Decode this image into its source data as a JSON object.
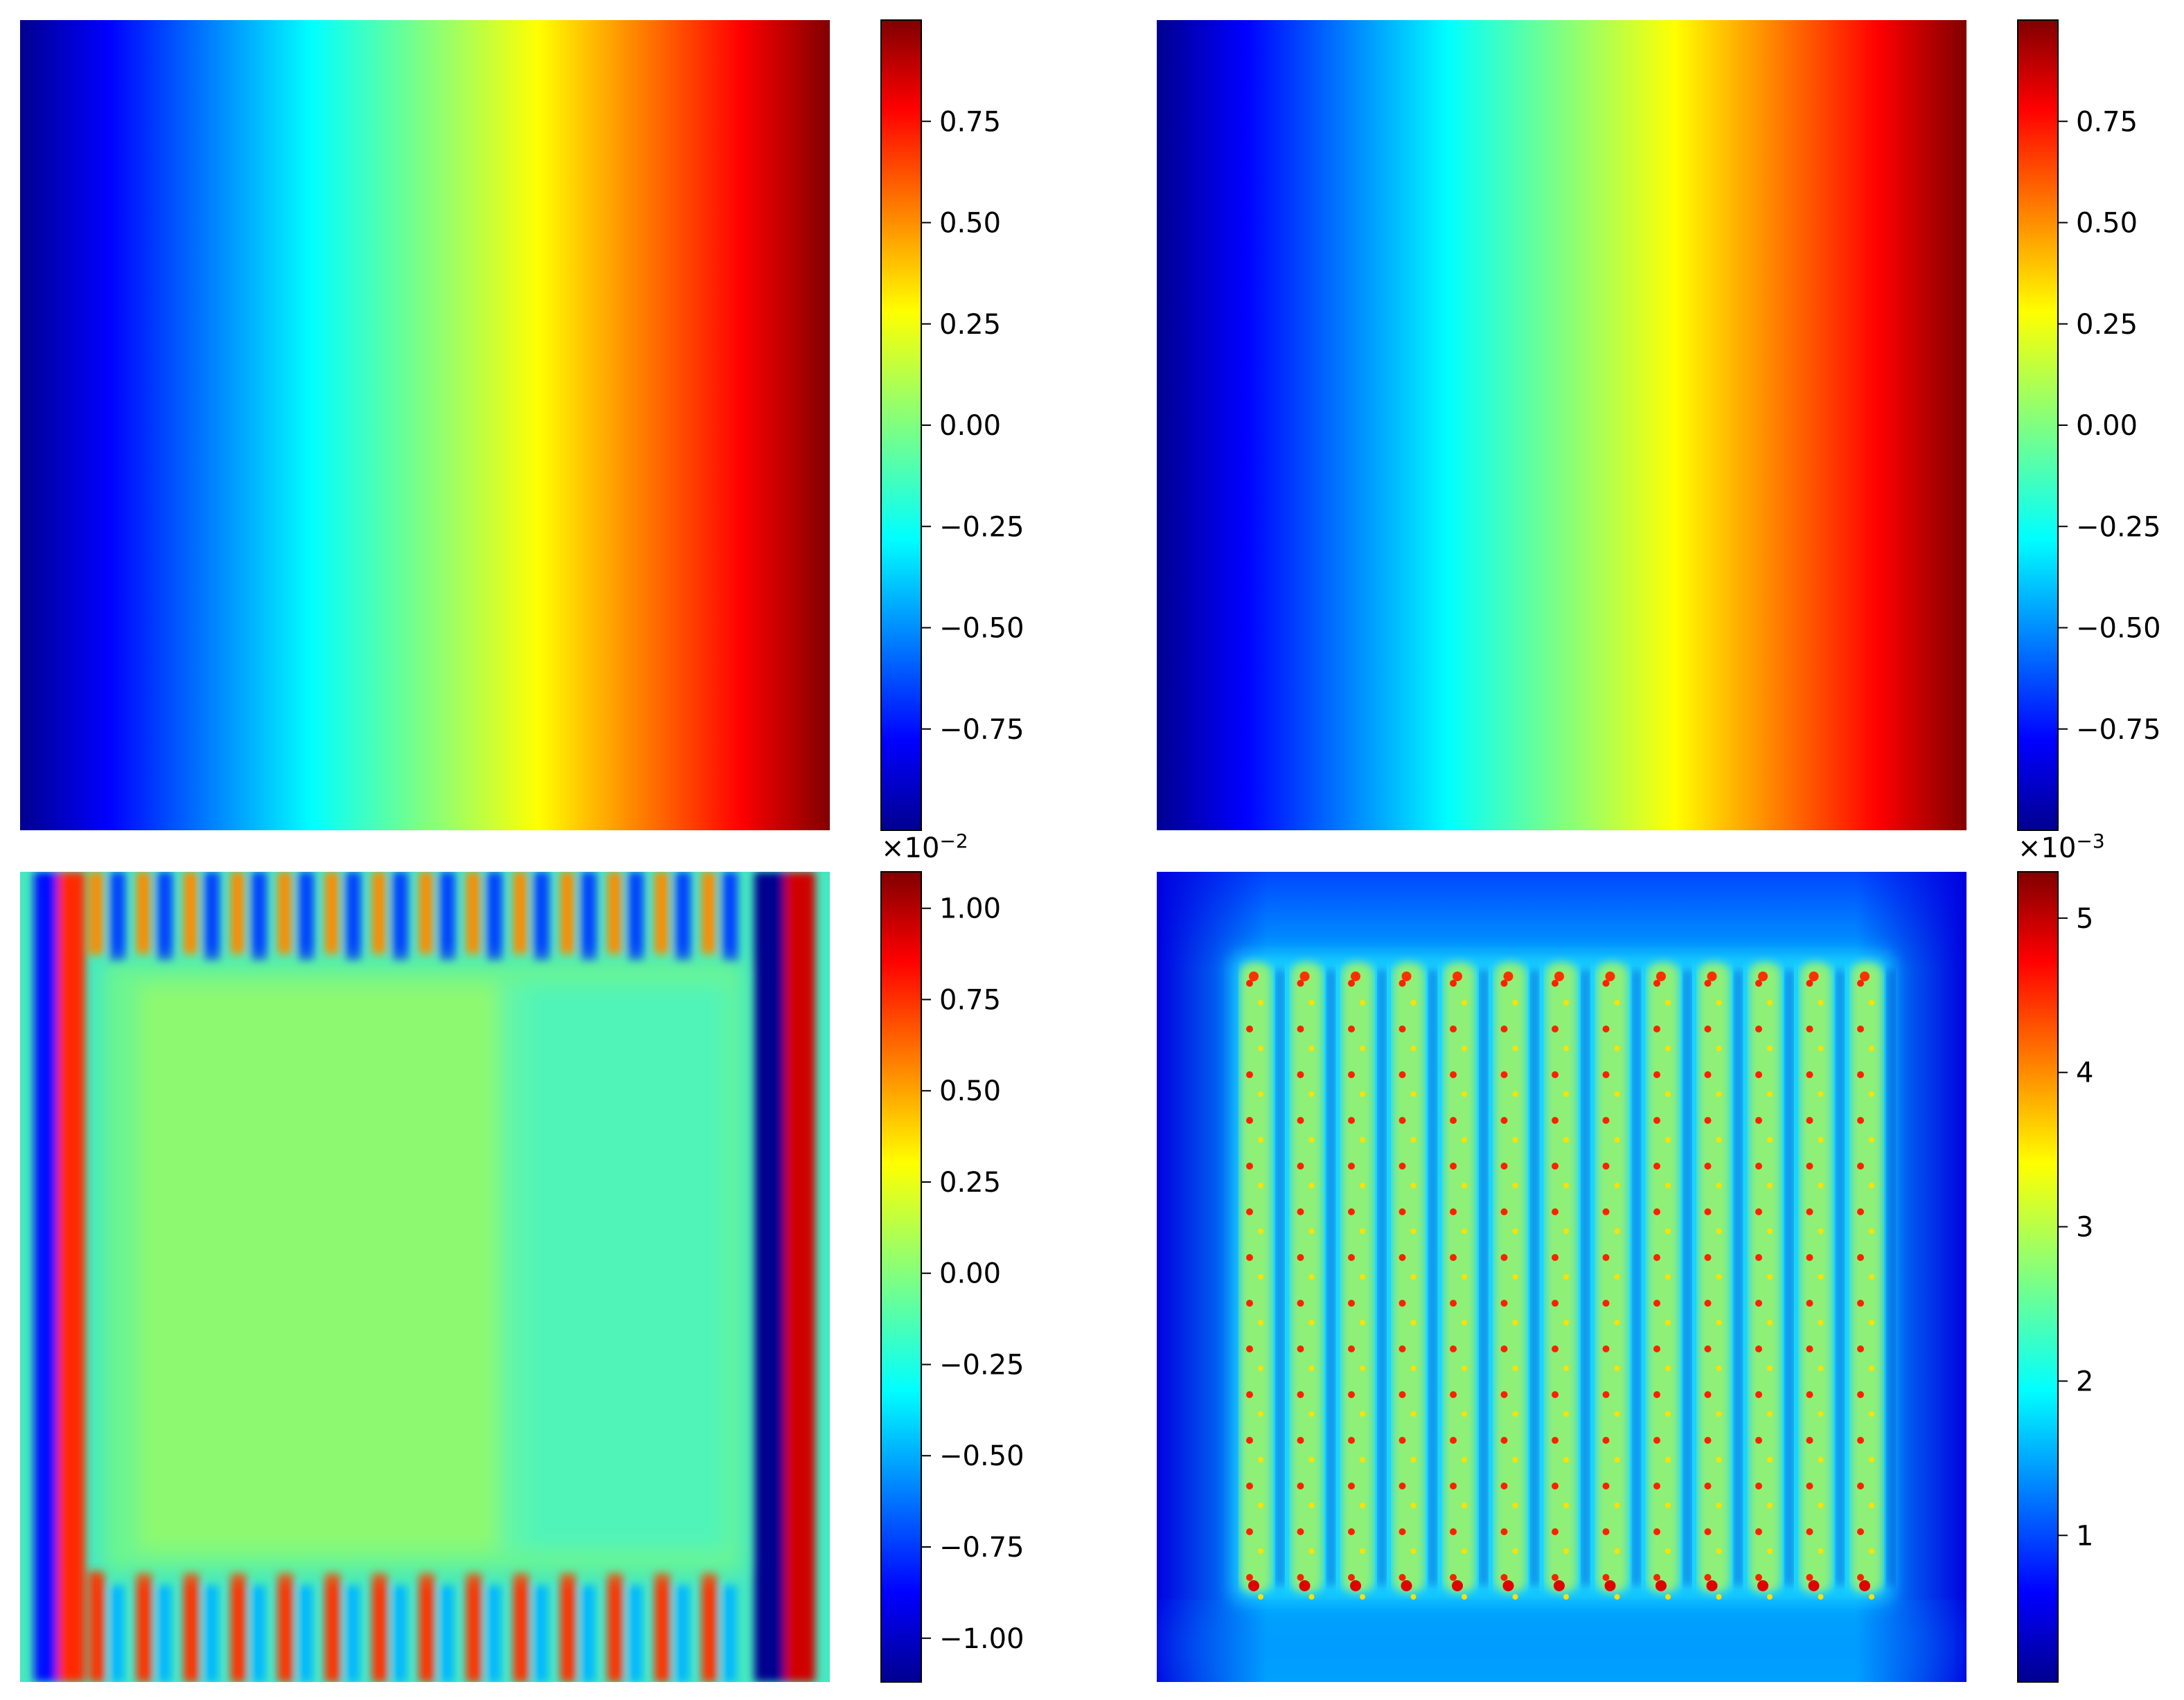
{
  "figure": {
    "colormap": "jet",
    "background": "#ffffff"
  },
  "chart_data": [
    {
      "type": "heatmap",
      "panel": "top-left",
      "title": "",
      "xlabel": "",
      "ylabel": "",
      "axes_visible": false,
      "field": "horizontal-gradient",
      "value_range": [
        -1.0,
        1.0
      ],
      "colorbar": {
        "ticks": [
          -0.75,
          -0.5,
          -0.25,
          0.0,
          0.25,
          0.5,
          0.75
        ],
        "tick_labels": [
          "−0.75",
          "−0.50",
          "−0.25",
          "0.00",
          "0.25",
          "0.50",
          "0.75"
        ],
        "range": [
          -1.0,
          1.0
        ],
        "multiplier": ""
      }
    },
    {
      "type": "heatmap",
      "panel": "top-right",
      "title": "",
      "xlabel": "",
      "ylabel": "",
      "axes_visible": false,
      "field": "horizontal-gradient",
      "value_range": [
        -1.0,
        1.0
      ],
      "colorbar": {
        "ticks": [
          -0.75,
          -0.5,
          -0.25,
          0.0,
          0.25,
          0.5,
          0.75
        ],
        "tick_labels": [
          "−0.75",
          "−0.50",
          "−0.25",
          "0.00",
          "0.25",
          "0.50",
          "0.75"
        ],
        "range": [
          -1.0,
          1.0
        ],
        "multiplier": ""
      }
    },
    {
      "type": "heatmap",
      "panel": "bottom-left",
      "title": "",
      "xlabel": "",
      "ylabel": "",
      "axes_visible": false,
      "field": "striped-difference",
      "value_range": [
        -1.12,
        1.1
      ],
      "colorbar": {
        "ticks": [
          -1.0,
          -0.75,
          -0.5,
          -0.25,
          0.0,
          0.25,
          0.5,
          0.75,
          1.0
        ],
        "tick_labels": [
          "−1.00",
          "−0.75",
          "−0.50",
          "−0.25",
          "0.00",
          "0.25",
          "0.50",
          "0.75",
          "1.00"
        ],
        "range": [
          -1.12,
          1.1
        ],
        "multiplier_base": "×10",
        "multiplier_exp": "−2"
      }
    },
    {
      "type": "heatmap",
      "panel": "bottom-right",
      "title": "",
      "xlabel": "",
      "ylabel": "",
      "axes_visible": false,
      "field": "grid-error",
      "value_range": [
        0.05,
        5.3
      ],
      "colorbar": {
        "ticks": [
          1,
          2,
          3,
          4,
          5
        ],
        "tick_labels": [
          "1",
          "2",
          "3",
          "4",
          "5"
        ],
        "range": [
          0.05,
          5.3
        ],
        "multiplier_base": "×10",
        "multiplier_exp": "−3"
      }
    }
  ]
}
